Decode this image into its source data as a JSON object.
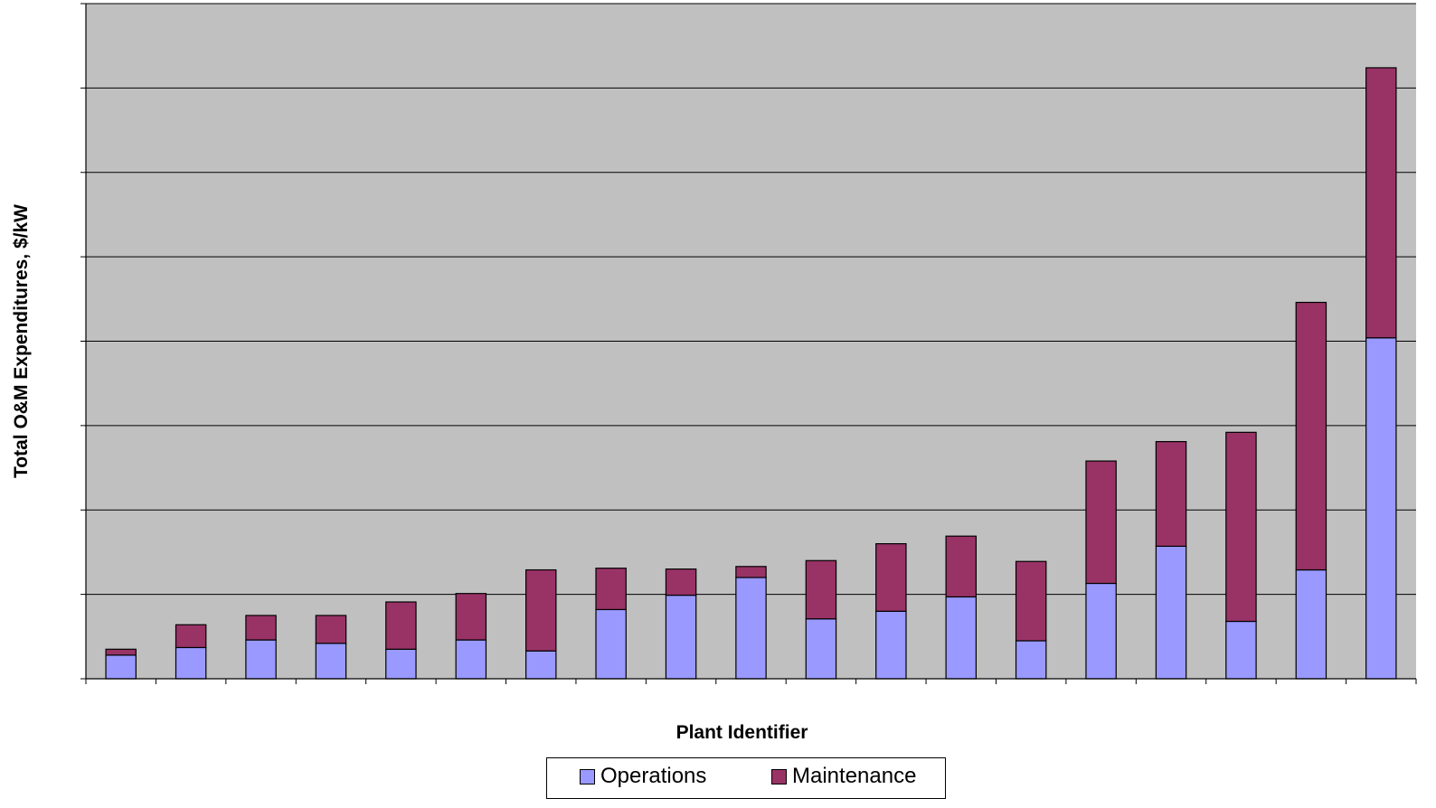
{
  "colors": {
    "plot_background": "#c0c0c0",
    "operations": "#9999ff",
    "maintenance": "#993366",
    "gridline": "#000000"
  },
  "chart_data": {
    "type": "bar",
    "stacked": true,
    "xlabel": "Plant Identifier",
    "ylabel": "Total O&M Expenditures, $/kW",
    "ylim": [
      0,
      8
    ],
    "y_gridlines": [
      1,
      2,
      3,
      4,
      5,
      6,
      7
    ],
    "y_tick_labels_shown": false,
    "x_tick_labels_shown": false,
    "grid": true,
    "legend_position": "bottom",
    "categories": [
      "",
      "",
      "",
      "",
      "",
      "",
      "",
      "",
      "",
      "",
      "",
      "",
      "",
      "",
      "",
      "",
      "",
      "",
      ""
    ],
    "series": [
      {
        "name": "Operations",
        "color": "#9999ff",
        "values": [
          0.28,
          0.37,
          0.46,
          0.42,
          0.35,
          0.46,
          0.33,
          0.82,
          0.99,
          1.2,
          0.71,
          0.8,
          0.97,
          0.45,
          1.13,
          1.57,
          0.68,
          1.29,
          4.04
        ]
      },
      {
        "name": "Maintenance",
        "color": "#993366",
        "values": [
          0.07,
          0.27,
          0.29,
          0.33,
          0.56,
          0.55,
          0.96,
          0.49,
          0.31,
          0.13,
          0.69,
          0.8,
          0.72,
          0.94,
          1.45,
          1.24,
          2.24,
          3.17,
          3.2
        ]
      }
    ]
  }
}
